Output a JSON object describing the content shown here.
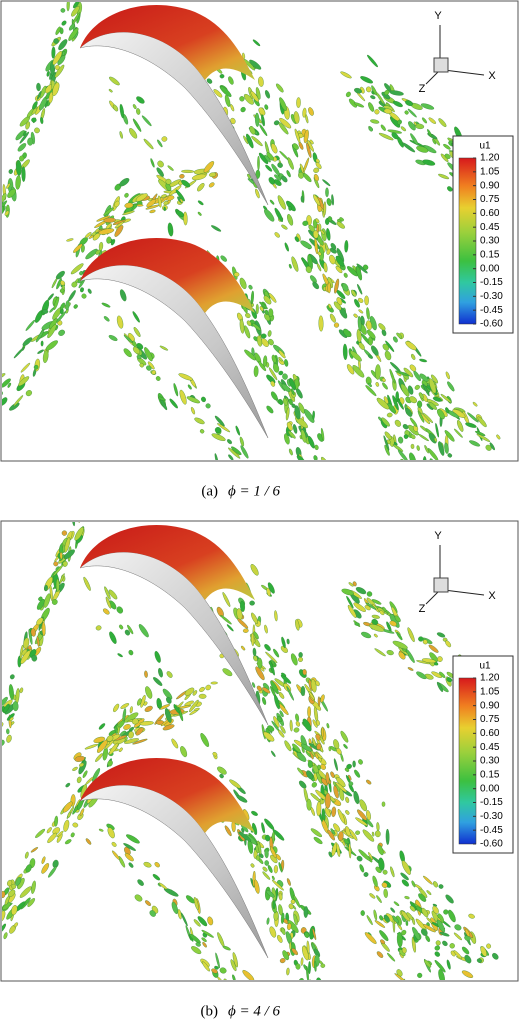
{
  "panels": [
    {
      "axes": {
        "x": "X",
        "y": "Y",
        "z": "Z"
      },
      "legend": {
        "title": "u1",
        "labels": [
          "1.20",
          "1.05",
          "0.90",
          "0.75",
          "0.60",
          "0.45",
          "0.30",
          "0.15",
          "0.00",
          "-0.15",
          "-0.30",
          "-0.45",
          "-0.60"
        ]
      },
      "caption": {
        "label": "(a)",
        "formula": "ϕ = 1 / 6"
      }
    },
    {
      "axes": {
        "x": "X",
        "y": "Y",
        "z": "Z"
      },
      "legend": {
        "title": "u1",
        "labels": [
          "1.20",
          "1.05",
          "0.90",
          "0.75",
          "0.60",
          "0.45",
          "0.30",
          "0.15",
          "0.00",
          "-0.15",
          "-0.30",
          "-0.45",
          "-0.60"
        ]
      },
      "caption": {
        "label": "(b)",
        "formula": "ϕ = 4 / 6"
      }
    }
  ]
}
